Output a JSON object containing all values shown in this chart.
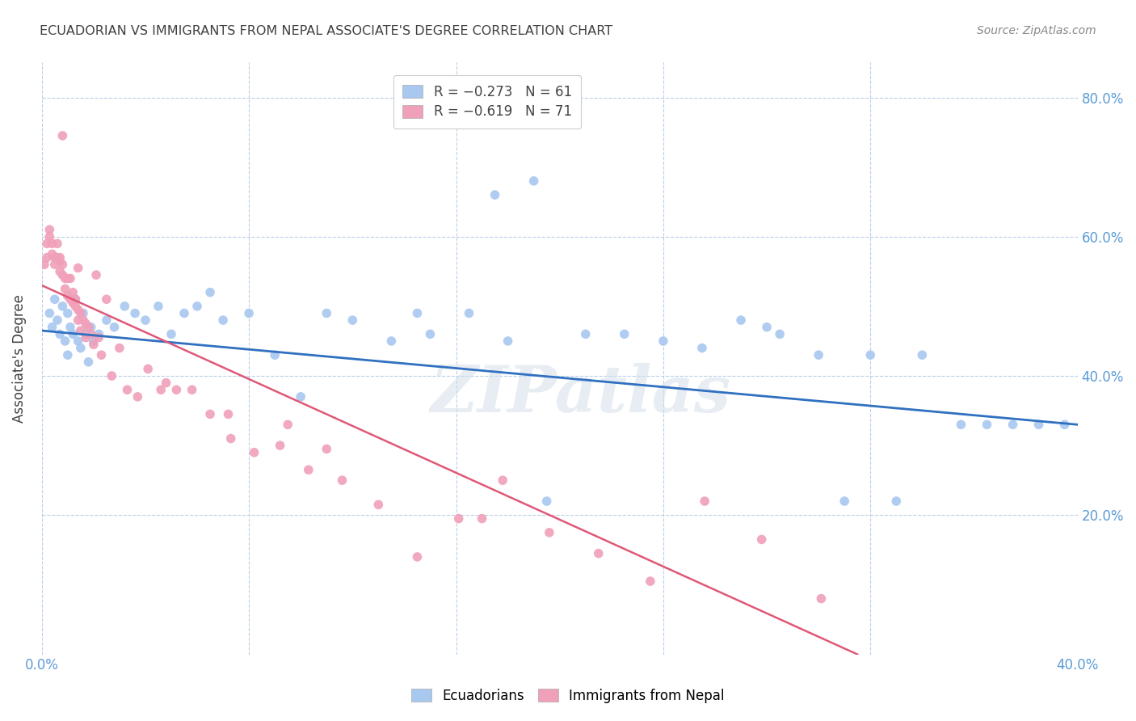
{
  "title": "ECUADORIAN VS IMMIGRANTS FROM NEPAL ASSOCIATE'S DEGREE CORRELATION CHART",
  "source": "Source: ZipAtlas.com",
  "ylabel_label": "Associate's Degree",
  "x_min": 0.0,
  "x_max": 0.4,
  "y_min": 0.0,
  "y_max": 0.85,
  "color_blue": "#a8c8f0",
  "color_pink": "#f0a0b8",
  "line_blue": "#3070c0",
  "line_pink": "#e05878",
  "watermark": "ZIPatlas",
  "legend_R1": "R = −0.273",
  "legend_N1": "N = 61",
  "legend_R2": "R = −0.619",
  "legend_N2": "N = 71",
  "blue_scatter_x": [
    0.003,
    0.004,
    0.005,
    0.006,
    0.007,
    0.008,
    0.009,
    0.01,
    0.01,
    0.011,
    0.012,
    0.013,
    0.014,
    0.015,
    0.016,
    0.017,
    0.018,
    0.019,
    0.02,
    0.022,
    0.025,
    0.028,
    0.032,
    0.036,
    0.04,
    0.045,
    0.05,
    0.055,
    0.06,
    0.065,
    0.07,
    0.08,
    0.09,
    0.1,
    0.11,
    0.12,
    0.135,
    0.15,
    0.165,
    0.18,
    0.195,
    0.21,
    0.225,
    0.24,
    0.255,
    0.27,
    0.285,
    0.3,
    0.32,
    0.34,
    0.355,
    0.365,
    0.375,
    0.385,
    0.395,
    0.175,
    0.28,
    0.31,
    0.19,
    0.33,
    0.145
  ],
  "blue_scatter_y": [
    0.49,
    0.47,
    0.51,
    0.48,
    0.46,
    0.5,
    0.45,
    0.49,
    0.43,
    0.47,
    0.46,
    0.51,
    0.45,
    0.44,
    0.49,
    0.46,
    0.42,
    0.47,
    0.45,
    0.46,
    0.48,
    0.47,
    0.5,
    0.49,
    0.48,
    0.5,
    0.46,
    0.49,
    0.5,
    0.52,
    0.48,
    0.49,
    0.43,
    0.37,
    0.49,
    0.48,
    0.45,
    0.46,
    0.49,
    0.45,
    0.22,
    0.46,
    0.46,
    0.45,
    0.44,
    0.48,
    0.46,
    0.43,
    0.43,
    0.43,
    0.33,
    0.33,
    0.33,
    0.33,
    0.33,
    0.66,
    0.47,
    0.22,
    0.68,
    0.22,
    0.49
  ],
  "pink_scatter_x": [
    0.001,
    0.002,
    0.002,
    0.003,
    0.003,
    0.004,
    0.004,
    0.005,
    0.005,
    0.006,
    0.006,
    0.007,
    0.007,
    0.007,
    0.008,
    0.008,
    0.009,
    0.009,
    0.01,
    0.01,
    0.011,
    0.011,
    0.012,
    0.012,
    0.013,
    0.013,
    0.014,
    0.014,
    0.015,
    0.015,
    0.016,
    0.017,
    0.017,
    0.018,
    0.019,
    0.02,
    0.021,
    0.022,
    0.023,
    0.025,
    0.027,
    0.03,
    0.033,
    0.037,
    0.041,
    0.046,
    0.052,
    0.058,
    0.065,
    0.073,
    0.082,
    0.092,
    0.103,
    0.116,
    0.13,
    0.145,
    0.161,
    0.178,
    0.196,
    0.215,
    0.235,
    0.256,
    0.278,
    0.301,
    0.17,
    0.048,
    0.072,
    0.11,
    0.095,
    0.008,
    0.014
  ],
  "pink_scatter_y": [
    0.56,
    0.59,
    0.57,
    0.61,
    0.6,
    0.59,
    0.575,
    0.57,
    0.56,
    0.59,
    0.57,
    0.565,
    0.57,
    0.55,
    0.56,
    0.545,
    0.54,
    0.525,
    0.515,
    0.54,
    0.51,
    0.54,
    0.505,
    0.52,
    0.5,
    0.51,
    0.495,
    0.48,
    0.465,
    0.49,
    0.48,
    0.475,
    0.455,
    0.47,
    0.46,
    0.445,
    0.545,
    0.455,
    0.43,
    0.51,
    0.4,
    0.44,
    0.38,
    0.37,
    0.41,
    0.38,
    0.38,
    0.38,
    0.345,
    0.31,
    0.29,
    0.3,
    0.265,
    0.25,
    0.215,
    0.14,
    0.195,
    0.25,
    0.175,
    0.145,
    0.105,
    0.22,
    0.165,
    0.08,
    0.195,
    0.39,
    0.345,
    0.295,
    0.33,
    0.745,
    0.555
  ],
  "blue_line_x0": 0.0,
  "blue_line_x1": 0.4,
  "blue_line_y0": 0.465,
  "blue_line_y1": 0.33,
  "pink_line_x0": 0.0,
  "pink_line_x1": 0.315,
  "pink_line_y0": 0.53,
  "pink_line_y1": 0.0,
  "background_color": "#ffffff",
  "grid_color": "#b8cfe8",
  "title_color": "#404040",
  "tick_color": "#5b9bd5"
}
